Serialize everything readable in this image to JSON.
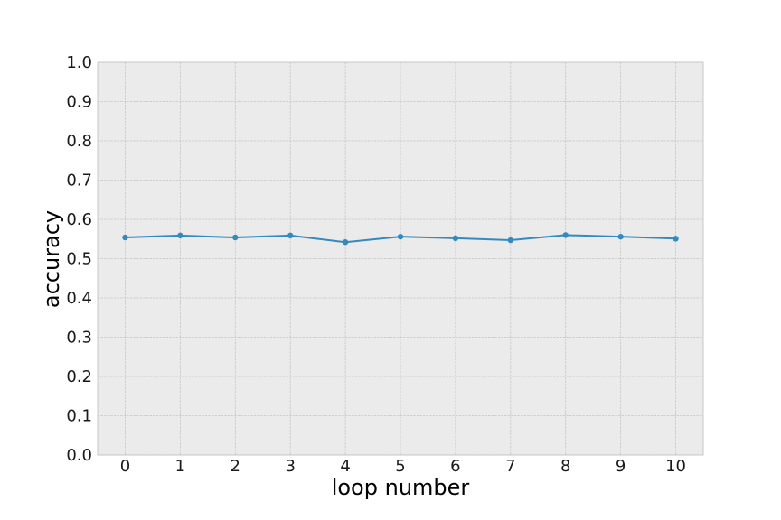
{
  "chart_data": {
    "type": "line",
    "title": "",
    "xlabel": "loop number",
    "ylabel": "accuracy",
    "x": [
      0,
      1,
      2,
      3,
      4,
      5,
      6,
      7,
      8,
      9,
      10
    ],
    "series": [
      {
        "values": [
          0.554,
          0.559,
          0.554,
          0.559,
          0.542,
          0.556,
          0.552,
          0.547,
          0.56,
          0.556,
          0.551
        ],
        "color": "#348abd",
        "marker": "circle"
      }
    ],
    "x_ticks": [
      "0",
      "1",
      "2",
      "3",
      "4",
      "5",
      "6",
      "7",
      "8",
      "9",
      "10"
    ],
    "y_ticks": [
      "0.0",
      "0.1",
      "0.2",
      "0.3",
      "0.4",
      "0.5",
      "0.6",
      "0.7",
      "0.8",
      "0.9",
      "1.0"
    ],
    "xlim": [
      -0.5,
      10.5
    ],
    "ylim": [
      0.0,
      1.0
    ],
    "grid": true,
    "background_color": "#ebebeb",
    "legend": "none"
  }
}
